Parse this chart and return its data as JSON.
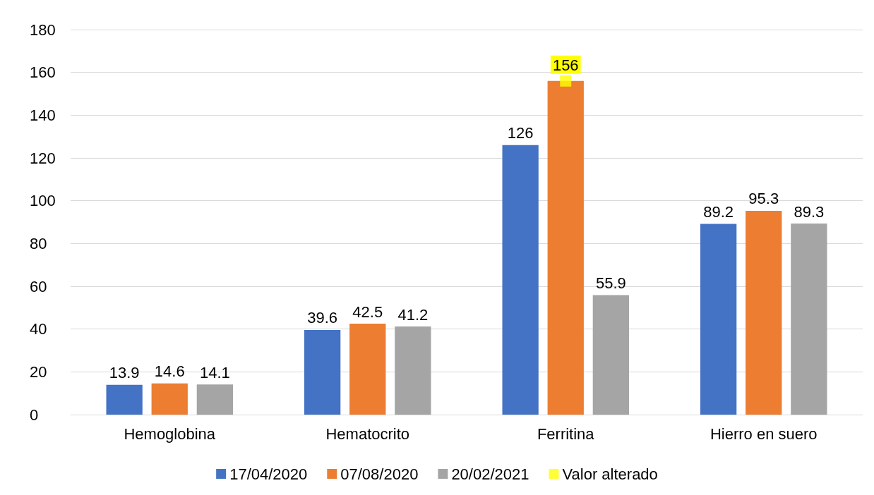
{
  "chart_data": {
    "type": "bar",
    "categories": [
      "Hemoglobina",
      "Hematocrito",
      "Ferritina",
      "Hierro en suero"
    ],
    "series": [
      {
        "name": "17/04/2020",
        "color": "#4472c4",
        "values": [
          13.9,
          39.6,
          126,
          89.2
        ]
      },
      {
        "name": "07/08/2020",
        "color": "#ed7d31",
        "values": [
          14.6,
          42.5,
          156,
          95.3
        ]
      },
      {
        "name": "20/02/2021",
        "color": "#a5a5a5",
        "values": [
          14.1,
          41.2,
          55.9,
          89.3
        ]
      },
      {
        "name": "Valor alterado",
        "color": "#ffff00",
        "type": "scatter",
        "marker": "square",
        "x": [
          "Hemoglobina",
          "Hematocrito",
          "Ferritina",
          "Hierro en suero"
        ],
        "values": [
          null,
          null,
          156,
          null
        ],
        "value_labels": [
          null,
          null,
          null,
          null
        ]
      }
    ],
    "ylim": [
      0,
      180
    ],
    "yticks": [
      0,
      20,
      40,
      60,
      80,
      100,
      120,
      140,
      160,
      180
    ],
    "grid": "y",
    "legend": "bottom",
    "data_labels": true
  }
}
